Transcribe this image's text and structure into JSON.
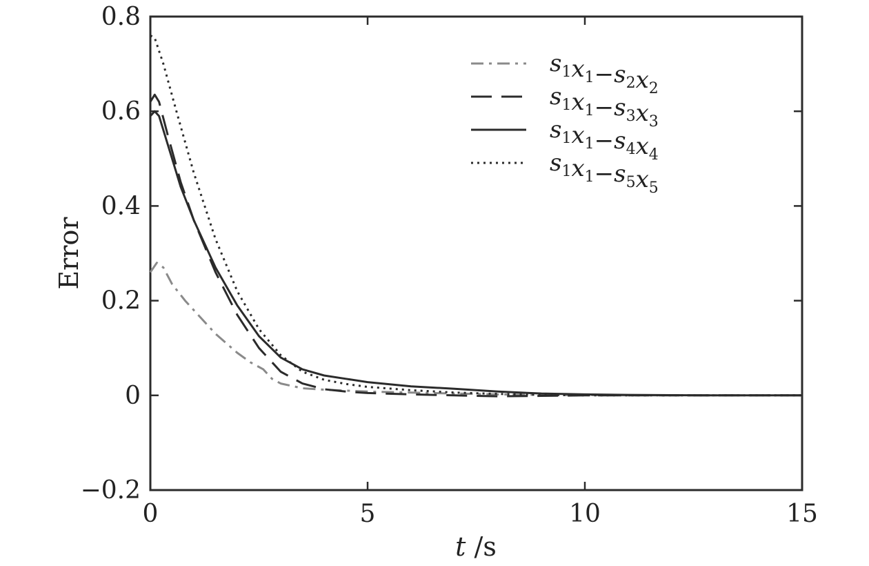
{
  "chart_data": {
    "type": "line",
    "title": "",
    "xlabel_italic": "t",
    "xlabel_unit": " /s",
    "ylabel": "Error",
    "xlim": [
      0,
      15
    ],
    "ylim": [
      -0.2,
      0.8
    ],
    "xticks": [
      0,
      5,
      10,
      15
    ],
    "xtick_labels": [
      "0",
      "5",
      "10",
      "15"
    ],
    "yticks": [
      -0.2,
      0,
      0.2,
      0.4,
      0.6,
      0.8
    ],
    "ytick_labels": [
      "−0.2",
      "0",
      "0.2",
      "0.4",
      "0.6",
      "0.8"
    ],
    "grid": false,
    "legend_position": "top-right",
    "series": [
      {
        "name": "s1x1−s2x2",
        "legend": {
          "a": "s",
          "a_sub": "1",
          "b": "x",
          "b_sub": "1",
          "op": "−",
          "c": "s",
          "c_sub": "2",
          "d": "x",
          "d_sub": "2"
        },
        "color": "#8a8a8a",
        "dash": "18,8,4,8",
        "x": [
          0,
          0.15,
          0.3,
          0.5,
          0.8,
          1.0,
          1.5,
          2.0,
          2.3,
          2.6,
          2.8,
          3.0,
          3.5,
          4.0,
          4.5,
          5.0,
          6.0,
          7.0,
          8.0,
          9.0,
          10.0,
          11.0,
          12.0,
          13.0,
          14.0,
          15.0
        ],
        "y": [
          0.26,
          0.28,
          0.27,
          0.235,
          0.2,
          0.18,
          0.13,
          0.09,
          0.07,
          0.055,
          0.035,
          0.025,
          0.015,
          0.012,
          0.01,
          0.008,
          0.006,
          0.004,
          0.002,
          0.001,
          0.0005,
          0.0002,
          0.0001,
          0,
          0,
          0
        ]
      },
      {
        "name": "s1x1−s3x3",
        "legend": {
          "a": "s",
          "a_sub": "1",
          "b": "x",
          "b_sub": "1",
          "op": "−",
          "c": "s",
          "c_sub": "3",
          "d": "x",
          "d_sub": "3"
        },
        "color": "#2b2b2b",
        "dash": "30,14",
        "x": [
          0,
          0.1,
          0.2,
          0.4,
          0.7,
          1.0,
          1.5,
          2.0,
          2.5,
          3.0,
          3.5,
          4.0,
          4.5,
          5.0,
          6.0,
          7.0,
          8.0,
          9.0,
          10.0,
          11.0,
          12.0,
          13.0,
          14.0,
          15.0
        ],
        "y": [
          0.62,
          0.635,
          0.62,
          0.55,
          0.45,
          0.37,
          0.26,
          0.17,
          0.1,
          0.05,
          0.025,
          0.013,
          0.008,
          0.005,
          0.002,
          0,
          -0.002,
          -0.001,
          0,
          0,
          0,
          0,
          0,
          0
        ]
      },
      {
        "name": "s1x1−s4x4",
        "legend": {
          "a": "s",
          "a_sub": "1",
          "b": "x",
          "b_sub": "1",
          "op": "−",
          "c": "s",
          "c_sub": "4",
          "d": "x",
          "d_sub": "4"
        },
        "color": "#2b2b2b",
        "dash": "",
        "x": [
          0,
          0.1,
          0.2,
          0.4,
          0.7,
          1.0,
          1.5,
          2.0,
          2.5,
          3.0,
          3.5,
          4.0,
          4.5,
          5.0,
          6.0,
          7.0,
          8.0,
          9.0,
          10.0,
          11.0,
          12.0,
          13.0,
          14.0,
          15.0
        ],
        "y": [
          0.59,
          0.6,
          0.59,
          0.53,
          0.44,
          0.37,
          0.27,
          0.19,
          0.125,
          0.08,
          0.055,
          0.042,
          0.035,
          0.028,
          0.019,
          0.014,
          0.008,
          0.004,
          0.002,
          0.001,
          0.0005,
          0,
          0,
          0
        ]
      },
      {
        "name": "s1x1−s5x5",
        "legend": {
          "a": "s",
          "a_sub": "1",
          "b": "x",
          "b_sub": "1",
          "op": "−",
          "c": "s",
          "c_sub": "5",
          "d": "x",
          "d_sub": "5"
        },
        "color": "#2b2b2b",
        "dash": "3,6",
        "x": [
          0,
          0.1,
          0.3,
          0.6,
          1.0,
          1.5,
          2.0,
          2.5,
          3.0,
          3.5,
          4.0,
          4.5,
          5.0,
          6.0,
          7.0,
          8.0,
          9.0,
          10.0,
          11.0,
          12.0,
          13.0,
          14.0,
          15.0
        ],
        "y": [
          0.76,
          0.755,
          0.7,
          0.6,
          0.47,
          0.33,
          0.22,
          0.14,
          0.085,
          0.05,
          0.033,
          0.024,
          0.018,
          0.011,
          0.006,
          0.003,
          0.001,
          0,
          0,
          0,
          0,
          0,
          0
        ]
      }
    ]
  }
}
